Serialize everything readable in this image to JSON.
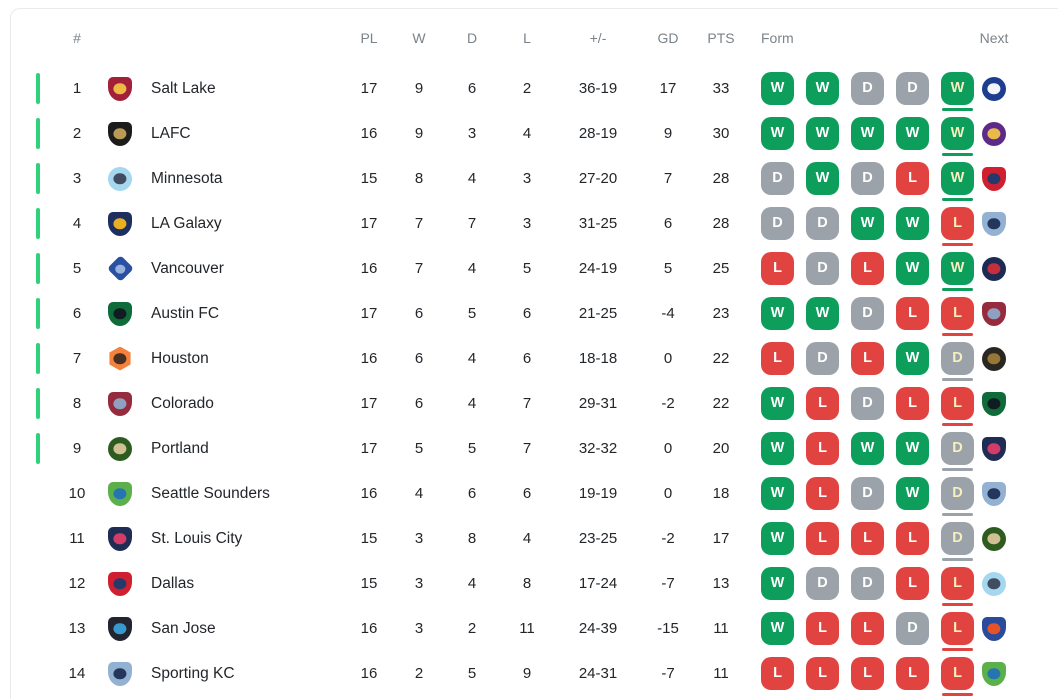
{
  "table": {
    "header": {
      "rank": "#",
      "played": "PL",
      "wins": "W",
      "draws": "D",
      "losses": "L",
      "goals": "+/-",
      "goal_diff": "GD",
      "points": "PTS",
      "form": "Form",
      "next": "Next"
    },
    "colors": {
      "win": "#0d9e5c",
      "draw": "#9ba2a9",
      "loss": "#e14341",
      "qualify_bar": "#2fd27a",
      "recent_text": "#f6efbe",
      "header_text": "#7b838a",
      "row_text": "#22262a",
      "border": "#e8eaec"
    },
    "rows": [
      {
        "rank": "1",
        "team": "Salt Lake",
        "played": "17",
        "wins": "9",
        "draws": "6",
        "losses": "2",
        "goals": "36-19",
        "goal_diff": "17",
        "points": "33",
        "qualified": true,
        "form": [
          "W",
          "W",
          "D",
          "D",
          "W"
        ],
        "team_logo": {
          "name": "real-salt-lake-logo",
          "shape": "shield",
          "primary": "#a22139",
          "secondary": "#f0c344"
        },
        "next_opponent": {
          "name": "cf-montreal-logo",
          "shape": "circle",
          "primary": "#1d3d8f",
          "secondary": "#ffffff"
        }
      },
      {
        "rank": "2",
        "team": "LAFC",
        "played": "16",
        "wins": "9",
        "draws": "3",
        "losses": "4",
        "goals": "28-19",
        "goal_diff": "9",
        "points": "30",
        "qualified": true,
        "form": [
          "W",
          "W",
          "W",
          "W",
          "W"
        ],
        "team_logo": {
          "name": "lafc-logo",
          "shape": "shield",
          "primary": "#1c1c1c",
          "secondary": "#c3a158"
        },
        "next_opponent": {
          "name": "orlando-city-logo",
          "shape": "circle",
          "primary": "#5d2a8a",
          "secondary": "#f0c244"
        }
      },
      {
        "rank": "3",
        "team": "Minnesota",
        "played": "15",
        "wins": "8",
        "draws": "4",
        "losses": "3",
        "goals": "27-20",
        "goal_diff": "7",
        "points": "28",
        "qualified": true,
        "form": [
          "D",
          "W",
          "D",
          "L",
          "W"
        ],
        "team_logo": {
          "name": "minnesota-united-logo",
          "shape": "circle",
          "primary": "#a5d8ef",
          "secondary": "#3b4559"
        },
        "next_opponent": {
          "name": "fc-dallas-logo",
          "shape": "shield",
          "primary": "#d02030",
          "secondary": "#1b3c6e"
        }
      },
      {
        "rank": "4",
        "team": "LA Galaxy",
        "played": "17",
        "wins": "7",
        "draws": "7",
        "losses": "3",
        "goals": "31-25",
        "goal_diff": "6",
        "points": "28",
        "qualified": true,
        "form": [
          "D",
          "D",
          "W",
          "W",
          "L"
        ],
        "team_logo": {
          "name": "la-galaxy-logo",
          "shape": "shield",
          "primary": "#1c2f5e",
          "secondary": "#f5b51e"
        },
        "next_opponent": {
          "name": "sporting-kc-logo",
          "shape": "shield",
          "primary": "#93b1d3",
          "secondary": "#1f2f55"
        }
      },
      {
        "rank": "5",
        "team": "Vancouver",
        "played": "16",
        "wins": "7",
        "draws": "4",
        "losses": "5",
        "goals": "24-19",
        "goal_diff": "5",
        "points": "25",
        "qualified": true,
        "form": [
          "L",
          "D",
          "L",
          "W",
          "W"
        ],
        "team_logo": {
          "name": "vancouver-whitecaps-logo",
          "shape": "diamond",
          "primary": "#2a50a3",
          "secondary": "#9db8dd"
        },
        "next_opponent": {
          "name": "new-england-revolution-logo",
          "shape": "circle",
          "primary": "#1d2a54",
          "secondary": "#cf2e3a"
        }
      },
      {
        "rank": "6",
        "team": "Austin FC",
        "played": "17",
        "wins": "6",
        "draws": "5",
        "losses": "6",
        "goals": "21-25",
        "goal_diff": "-4",
        "points": "23",
        "qualified": true,
        "form": [
          "W",
          "W",
          "D",
          "L",
          "L"
        ],
        "team_logo": {
          "name": "austin-fc-logo",
          "shape": "shield",
          "primary": "#0f6b3a",
          "secondary": "#101820"
        },
        "next_opponent": {
          "name": "colorado-rapids-logo",
          "shape": "shield",
          "primary": "#962b3e",
          "secondary": "#8fa7c7"
        }
      },
      {
        "rank": "7",
        "team": "Houston",
        "played": "16",
        "wins": "6",
        "draws": "4",
        "losses": "6",
        "goals": "18-18",
        "goal_diff": "0",
        "points": "22",
        "qualified": true,
        "form": [
          "L",
          "D",
          "L",
          "W",
          "D"
        ],
        "team_logo": {
          "name": "houston-dynamo-logo",
          "shape": "hex",
          "primary": "#f4823c",
          "secondary": "#3d2b20"
        },
        "next_opponent": {
          "name": "atlanta-united-logo",
          "shape": "circle",
          "primary": "#2a2622",
          "secondary": "#9d7a38"
        }
      },
      {
        "rank": "8",
        "team": "Colorado",
        "played": "17",
        "wins": "6",
        "draws": "4",
        "losses": "7",
        "goals": "29-31",
        "goal_diff": "-2",
        "points": "22",
        "qualified": true,
        "form": [
          "W",
          "L",
          "D",
          "L",
          "L"
        ],
        "team_logo": {
          "name": "colorado-rapids-logo",
          "shape": "shield",
          "primary": "#962b3e",
          "secondary": "#8fa7c7"
        },
        "next_opponent": {
          "name": "austin-fc-logo",
          "shape": "shield",
          "primary": "#0f6b3a",
          "secondary": "#101820"
        }
      },
      {
        "rank": "9",
        "team": "Portland",
        "played": "17",
        "wins": "5",
        "draws": "5",
        "losses": "7",
        "goals": "32-32",
        "goal_diff": "0",
        "points": "20",
        "qualified": true,
        "form": [
          "W",
          "L",
          "W",
          "W",
          "D"
        ],
        "team_logo": {
          "name": "portland-timbers-logo",
          "shape": "circle",
          "primary": "#2e5b1f",
          "secondary": "#d9c69a"
        },
        "next_opponent": {
          "name": "st-louis-city-logo",
          "shape": "shield",
          "primary": "#1f2d55",
          "secondary": "#dd3d6a"
        }
      },
      {
        "rank": "10",
        "team": "Seattle Sounders",
        "played": "16",
        "wins": "4",
        "draws": "6",
        "losses": "6",
        "goals": "19-19",
        "goal_diff": "0",
        "points": "18",
        "qualified": false,
        "form": [
          "W",
          "L",
          "D",
          "W",
          "D"
        ],
        "team_logo": {
          "name": "seattle-sounders-logo",
          "shape": "shield",
          "primary": "#5cb04c",
          "secondary": "#2273b5"
        },
        "next_opponent": {
          "name": "sporting-kc-logo",
          "shape": "shield",
          "primary": "#93b1d3",
          "secondary": "#1f2f55"
        }
      },
      {
        "rank": "11",
        "team": "St. Louis City",
        "played": "15",
        "wins": "3",
        "draws": "8",
        "losses": "4",
        "goals": "23-25",
        "goal_diff": "-2",
        "points": "17",
        "qualified": false,
        "form": [
          "W",
          "L",
          "L",
          "L",
          "D"
        ],
        "team_logo": {
          "name": "st-louis-city-logo",
          "shape": "shield",
          "primary": "#1f2d55",
          "secondary": "#dd3d6a"
        },
        "next_opponent": {
          "name": "portland-timbers-logo",
          "shape": "circle",
          "primary": "#2e5b1f",
          "secondary": "#d9c69a"
        }
      },
      {
        "rank": "12",
        "team": "Dallas",
        "played": "15",
        "wins": "3",
        "draws": "4",
        "losses": "8",
        "goals": "17-24",
        "goal_diff": "-7",
        "points": "13",
        "qualified": false,
        "form": [
          "W",
          "D",
          "D",
          "L",
          "L"
        ],
        "team_logo": {
          "name": "fc-dallas-logo",
          "shape": "shield",
          "primary": "#d02030",
          "secondary": "#1b3c6e"
        },
        "next_opponent": {
          "name": "minnesota-united-logo",
          "shape": "circle",
          "primary": "#a5d8ef",
          "secondary": "#3b4559"
        }
      },
      {
        "rank": "13",
        "team": "San Jose",
        "played": "16",
        "wins": "3",
        "draws": "2",
        "losses": "11",
        "goals": "24-39",
        "goal_diff": "-15",
        "points": "11",
        "qualified": false,
        "form": [
          "W",
          "L",
          "L",
          "D",
          "L"
        ],
        "team_logo": {
          "name": "san-jose-earthquakes-logo",
          "shape": "shield",
          "primary": "#222430",
          "secondary": "#3aa0d8"
        },
        "next_opponent": {
          "name": "fc-cincinnati-logo",
          "shape": "shield",
          "primary": "#2a4a9b",
          "secondary": "#f05323"
        }
      },
      {
        "rank": "14",
        "team": "Sporting KC",
        "played": "16",
        "wins": "2",
        "draws": "5",
        "losses": "9",
        "goals": "24-31",
        "goal_diff": "-7",
        "points": "11",
        "qualified": false,
        "form": [
          "L",
          "L",
          "L",
          "L",
          "L"
        ],
        "team_logo": {
          "name": "sporting-kc-logo",
          "shape": "shield",
          "primary": "#93b1d3",
          "secondary": "#1f2f55"
        },
        "next_opponent": {
          "name": "seattle-sounders-logo",
          "shape": "shield",
          "primary": "#5cb04c",
          "secondary": "#2273b5"
        }
      }
    ]
  }
}
